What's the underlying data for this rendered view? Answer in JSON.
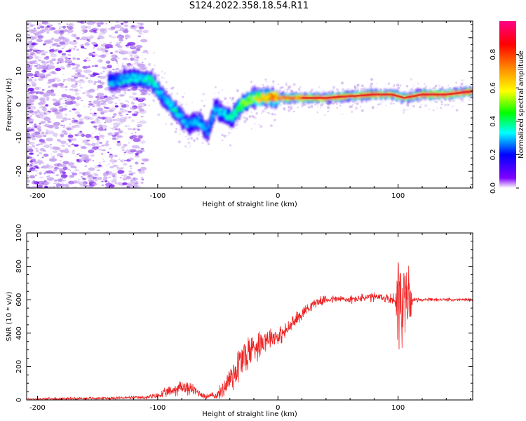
{
  "title": "S124.2022.358.18.54.R11",
  "colors": {
    "snr_line": "#ee2222",
    "scatter_light": "#c9a8ef",
    "scatter_mid": "#9a5be6",
    "scatter_dark": "#6a00ee",
    "ridge_core": "#dd2222"
  },
  "chart_data": [
    {
      "type": "heatmap",
      "xlabel": "Height of straight line (km)",
      "ylabel": "Frequency (Hz)",
      "xlim": [
        -209,
        162
      ],
      "ylim": [
        -25,
        25
      ],
      "xticks": [
        -200,
        -100,
        0,
        100
      ],
      "yticks": [
        -20,
        -10,
        0,
        10,
        20
      ],
      "colorbar": {
        "label": "Normalized spectral amplitude",
        "range": [
          0,
          1
        ],
        "ticks": [
          0.0,
          0.2,
          0.4,
          0.6,
          0.8
        ],
        "colormap": [
          "#ffffff",
          "#7f00ff",
          "#0000ff",
          "#00ffff",
          "#00ff00",
          "#ffff00",
          "#ff8800",
          "#ff0000",
          "#ff0088"
        ]
      },
      "ridge": {
        "x": [
          -135,
          -120,
          -105,
          -95,
          -85,
          -75,
          -65,
          -58,
          -52,
          -45,
          -38,
          -30,
          -20,
          -10,
          0,
          20,
          40,
          60,
          80,
          95,
          105,
          120,
          140,
          162
        ],
        "y": [
          7,
          8,
          7,
          2,
          -2,
          -6,
          -5,
          -8,
          -1,
          -3,
          -4,
          0,
          2,
          2,
          2,
          2,
          2,
          2.5,
          3,
          3,
          2,
          3,
          3,
          4
        ],
        "peak_amplitude": [
          0.3,
          0.35,
          0.35,
          0.3,
          0.35,
          0.3,
          0.3,
          0.25,
          0.3,
          0.3,
          0.4,
          0.5,
          0.6,
          0.7,
          0.75,
          0.85,
          0.9,
          0.85,
          0.9,
          0.85,
          0.7,
          0.9,
          0.9,
          0.95
        ]
      },
      "noise_region": {
        "x": [
          -209,
          -120
        ],
        "amplitude": [
          0.05,
          0.2
        ]
      }
    },
    {
      "type": "line",
      "xlabel": "Height of straight line (km)",
      "ylabel": "SNR (10 * v/v)",
      "xlim": [
        -209,
        162
      ],
      "ylim": [
        0,
        1000
      ],
      "xticks": [
        -200,
        -100,
        0,
        100
      ],
      "yticks": [
        0,
        200,
        400,
        600,
        800,
        1000
      ],
      "envelope": {
        "x": [
          -209,
          -150,
          -110,
          -100,
          -90,
          -80,
          -70,
          -60,
          -50,
          -45,
          -40,
          -35,
          -30,
          -25,
          -20,
          -15,
          -10,
          -5,
          0,
          5,
          10,
          20,
          30,
          40,
          50,
          60,
          70,
          80,
          90,
          97,
          100,
          103,
          106,
          108,
          112,
          120,
          140,
          162
        ],
        "mean": [
          5,
          10,
          15,
          25,
          50,
          80,
          60,
          20,
          30,
          70,
          130,
          180,
          240,
          280,
          320,
          340,
          370,
          380,
          380,
          400,
          440,
          520,
          580,
          600,
          605,
          600,
          610,
          615,
          610,
          600,
          620,
          600,
          550,
          600,
          600,
          600,
          600,
          600
        ],
        "noise": [
          8,
          8,
          10,
          20,
          35,
          50,
          35,
          15,
          30,
          60,
          100,
          120,
          140,
          120,
          100,
          90,
          80,
          60,
          60,
          50,
          50,
          40,
          30,
          25,
          25,
          25,
          25,
          30,
          30,
          40,
          300,
          400,
          400,
          250,
          15,
          10,
          10,
          10
        ]
      }
    }
  ]
}
